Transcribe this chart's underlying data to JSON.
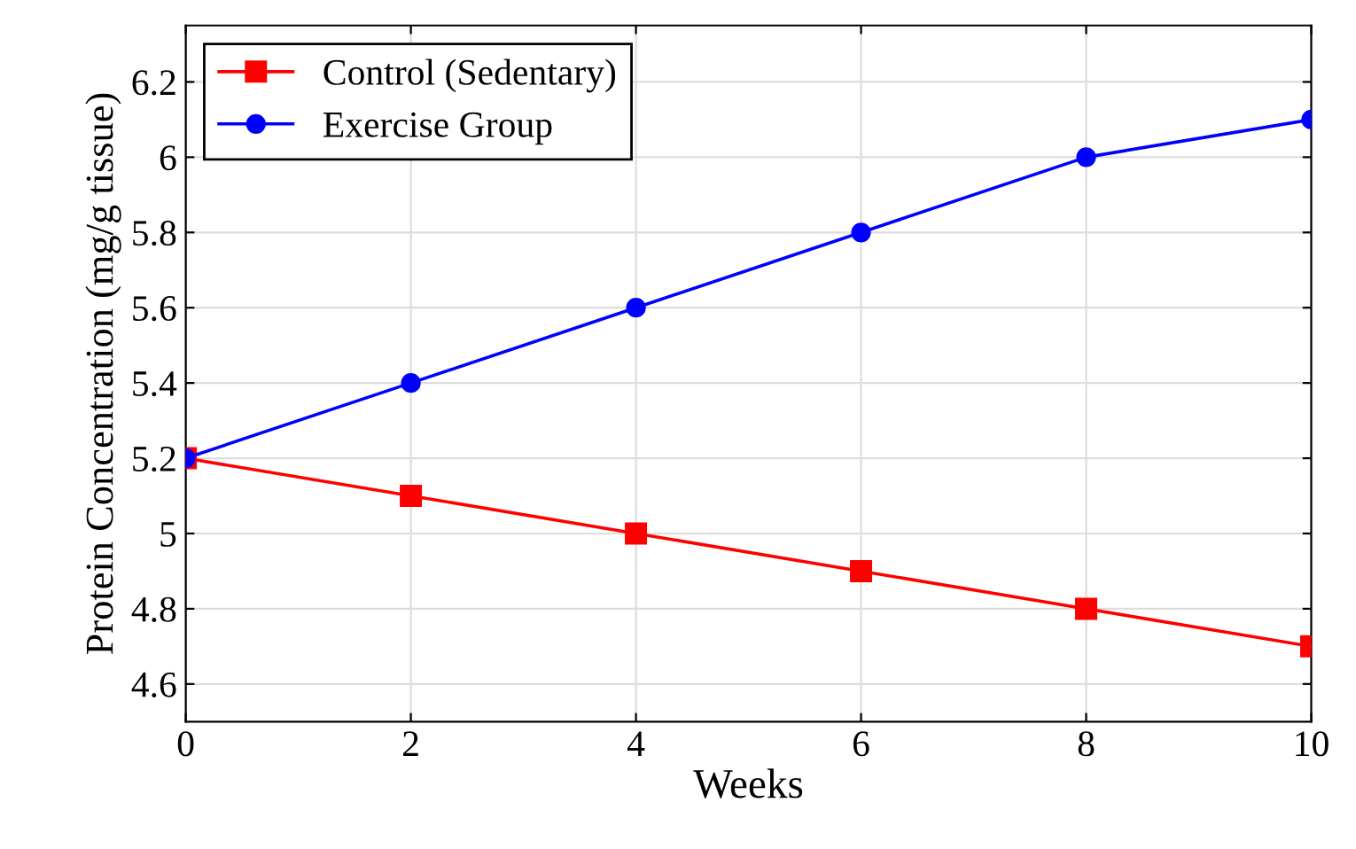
{
  "chart_data": {
    "type": "line",
    "xlabel": "Weeks",
    "ylabel": "Protein Concentration (mg/g tissue)",
    "x": [
      0,
      2,
      4,
      6,
      8,
      10
    ],
    "series": [
      {
        "name": "Control (Sedentary)",
        "color": "#ff0000",
        "marker": "square",
        "values": [
          5.2,
          5.1,
          5.0,
          4.9,
          4.8,
          4.7
        ]
      },
      {
        "name": "Exercise Group",
        "color": "#0000ff",
        "marker": "circle",
        "values": [
          5.2,
          5.4,
          5.6,
          5.8,
          6.0,
          6.1
        ]
      }
    ],
    "xlim": [
      0,
      10
    ],
    "xticks": [
      0,
      2,
      4,
      6,
      8,
      10
    ],
    "ylim": [
      4.5,
      6.35
    ],
    "yticks": [
      4.6,
      4.8,
      5,
      5.2,
      5.4,
      5.6,
      5.8,
      6,
      6.2
    ],
    "grid": true,
    "legend": "top left",
    "line_style": "solid"
  }
}
